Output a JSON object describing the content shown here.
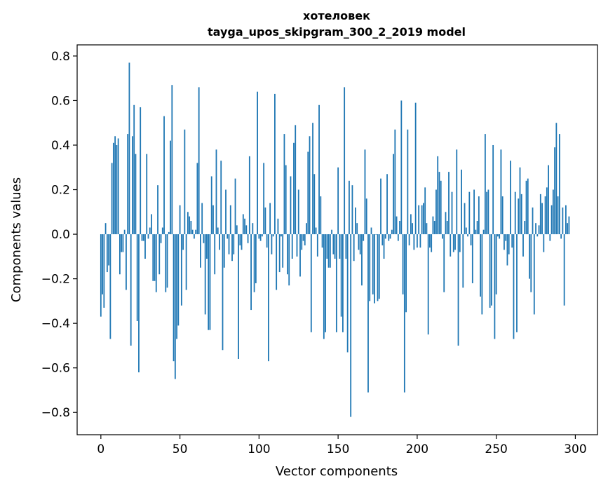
{
  "chart_data": {
    "type": "bar",
    "title_line1": "хотеловек",
    "title_line2": "tayga_upos_skipgram_300_2_2019 model",
    "xlabel": "Vector components",
    "ylabel": "Components values",
    "xlim": [
      -15,
      314
    ],
    "ylim": [
      -0.9,
      0.85
    ],
    "xticks": [
      0,
      50,
      100,
      150,
      200,
      250,
      300
    ],
    "yticks": [
      -0.8,
      -0.6,
      -0.4,
      -0.2,
      0.0,
      0.2,
      0.4,
      0.6,
      0.8
    ],
    "ytick_labels": [
      "−0.8",
      "−0.6",
      "−0.4",
      "−0.2",
      "0.0",
      "0.2",
      "0.4",
      "0.6",
      "0.8"
    ],
    "grid": false,
    "bar_color": "#1f77b4",
    "values": [
      -0.37,
      -0.27,
      -0.33,
      0.05,
      -0.17,
      -0.14,
      -0.47,
      0.32,
      0.41,
      0.44,
      0.4,
      0.43,
      -0.18,
      -0.08,
      -0.08,
      0.02,
      -0.25,
      0.45,
      0.77,
      -0.5,
      0.44,
      0.58,
      0.36,
      -0.39,
      -0.62,
      0.57,
      -0.03,
      -0.03,
      -0.11,
      0.36,
      -0.02,
      0.03,
      0.09,
      -0.21,
      -0.21,
      -0.26,
      0.22,
      -0.18,
      -0.04,
      0.03,
      0.53,
      -0.26,
      -0.24,
      0.01,
      0.42,
      0.67,
      -0.57,
      -0.65,
      -0.47,
      -0.41,
      0.13,
      -0.32,
      -0.07,
      0.47,
      -0.25,
      0.1,
      0.08,
      0.06,
      0.02,
      -0.02,
      0.02,
      0.32,
      0.66,
      -0.15,
      0.14,
      -0.04,
      -0.36,
      -0.11,
      -0.43,
      -0.43,
      0.26,
      0.13,
      -0.18,
      0.38,
      0.03,
      -0.07,
      0.33,
      -0.52,
      -0.15,
      0.2,
      -0.02,
      -0.09,
      0.13,
      -0.12,
      -0.09,
      0.25,
      0.04,
      -0.56,
      -0.05,
      -0.07,
      0.09,
      0.07,
      0.04,
      -0.04,
      0.35,
      -0.34,
      0.05,
      -0.26,
      -0.22,
      0.64,
      -0.02,
      -0.03,
      -0.01,
      0.32,
      0.12,
      -0.06,
      -0.57,
      0.14,
      -0.09,
      -0.01,
      0.63,
      -0.25,
      0.07,
      -0.17,
      -0.01,
      -0.15,
      0.45,
      0.31,
      -0.18,
      -0.23,
      0.26,
      -0.11,
      0.41,
      0.49,
      -0.1,
      0.2,
      -0.19,
      -0.07,
      -0.03,
      -0.05,
      0.05,
      0.37,
      0.44,
      -0.44,
      0.5,
      0.27,
      0.03,
      -0.1,
      0.58,
      0.17,
      -0.06,
      -0.47,
      -0.44,
      -0.11,
      -0.15,
      -0.15,
      0.02,
      -0.09,
      -0.11,
      -0.44,
      0.3,
      -0.11,
      -0.37,
      -0.44,
      0.66,
      -0.11,
      -0.53,
      0.24,
      -0.82,
      0.22,
      -0.12,
      0.12,
      0.05,
      -0.07,
      -0.09,
      -0.23,
      -0.03,
      0.38,
      0.16,
      -0.71,
      -0.3,
      0.03,
      -0.27,
      -0.31,
      0.0,
      -0.3,
      -0.29,
      0.25,
      -0.05,
      -0.11,
      -0.02,
      0.27,
      -0.03,
      -0.02,
      0.02,
      0.36,
      0.47,
      0.08,
      -0.03,
      0.06,
      0.6,
      -0.27,
      -0.71,
      -0.35,
      0.47,
      -0.05,
      0.09,
      0.05,
      -0.07,
      0.59,
      -0.06,
      0.13,
      -0.06,
      0.13,
      0.14,
      0.21,
      0.05,
      -0.45,
      -0.06,
      -0.08,
      0.08,
      0.06,
      0.2,
      0.35,
      0.28,
      0.24,
      -0.02,
      -0.26,
      0.1,
      0.06,
      0.28,
      -0.1,
      0.19,
      -0.08,
      -0.07,
      0.38,
      -0.5,
      -0.08,
      0.29,
      -0.24,
      0.14,
      0.03,
      -0.01,
      0.19,
      -0.05,
      -0.22,
      0.2,
      0.02,
      0.06,
      0.17,
      -0.28,
      -0.36,
      0.02,
      0.45,
      0.19,
      0.2,
      -0.33,
      -0.32,
      0.4,
      -0.47,
      -0.27,
      -0.01,
      -0.02,
      0.38,
      0.17,
      -0.07,
      -0.03,
      -0.14,
      -0.09,
      0.33,
      -0.06,
      -0.47,
      0.19,
      -0.44,
      0.16,
      0.3,
      0.18,
      -0.1,
      0.06,
      0.24,
      0.25,
      -0.2,
      -0.26,
      0.12,
      -0.36,
      0.05,
      -0.01,
      0.04,
      0.18,
      0.14,
      -0.08,
      0.17,
      0.21,
      0.31,
      -0.03,
      0.13,
      0.2,
      0.39,
      0.5,
      0.17,
      0.45,
      -0.02,
      0.12,
      -0.32,
      0.13,
      0.05,
      0.08
    ]
  }
}
